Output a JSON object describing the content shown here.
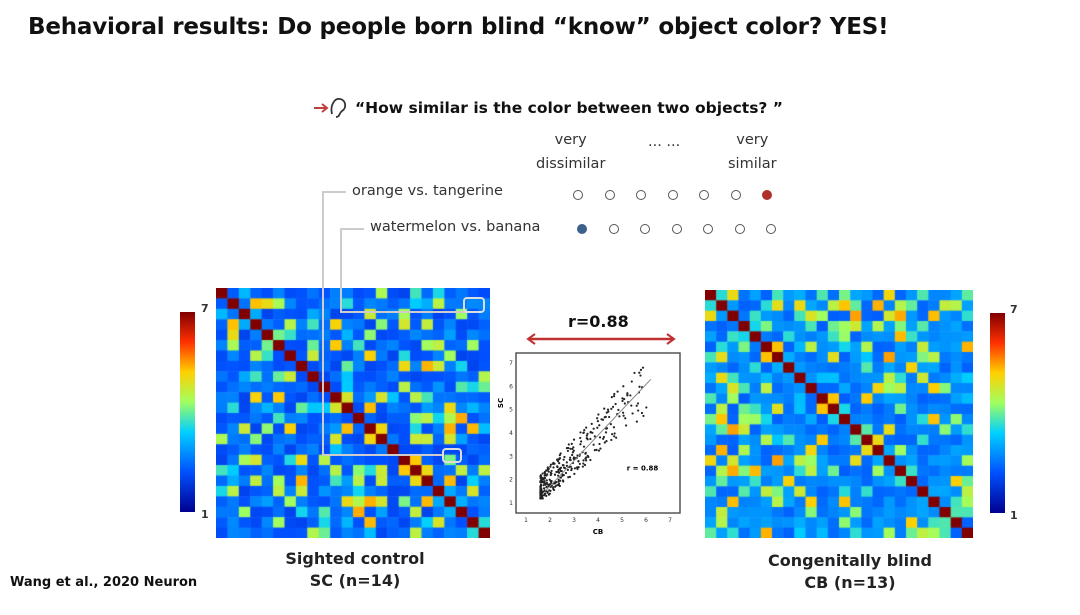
{
  "title": "Behavioral results: Do people born blind “know” object color? YES!",
  "question": "“How similar is the color between two objects? ”",
  "question_icon": "ear-icon",
  "scale": {
    "low": "very\ndissimilar",
    "dots": "··· ···",
    "high": "very\nsimilar"
  },
  "ratings": [
    {
      "label": "orange vs. tangerine",
      "selected": 7,
      "color": "#b0302c"
    },
    {
      "label": "watermelon vs. banana",
      "selected": 1,
      "color": "#3d5f8c"
    }
  ],
  "colorbar": {
    "max": "7",
    "min": "1"
  },
  "correlation": "r=0.88",
  "scatter": {
    "xlabel": "CB",
    "ylabel": "SC",
    "annotation": "r = 0.88",
    "xticks": [
      "1",
      "2",
      "3",
      "4",
      "5",
      "6",
      "7"
    ],
    "yticks": [
      "1",
      "2",
      "3",
      "4",
      "5",
      "6",
      "7"
    ]
  },
  "left_caption": {
    "line1": "Sighted control",
    "line2": "SC (n=14)"
  },
  "right_caption": {
    "line1": "Congenitally blind",
    "line2": "CB (n=13)"
  },
  "citation": "Wang et al., 2020 Neuron"
}
